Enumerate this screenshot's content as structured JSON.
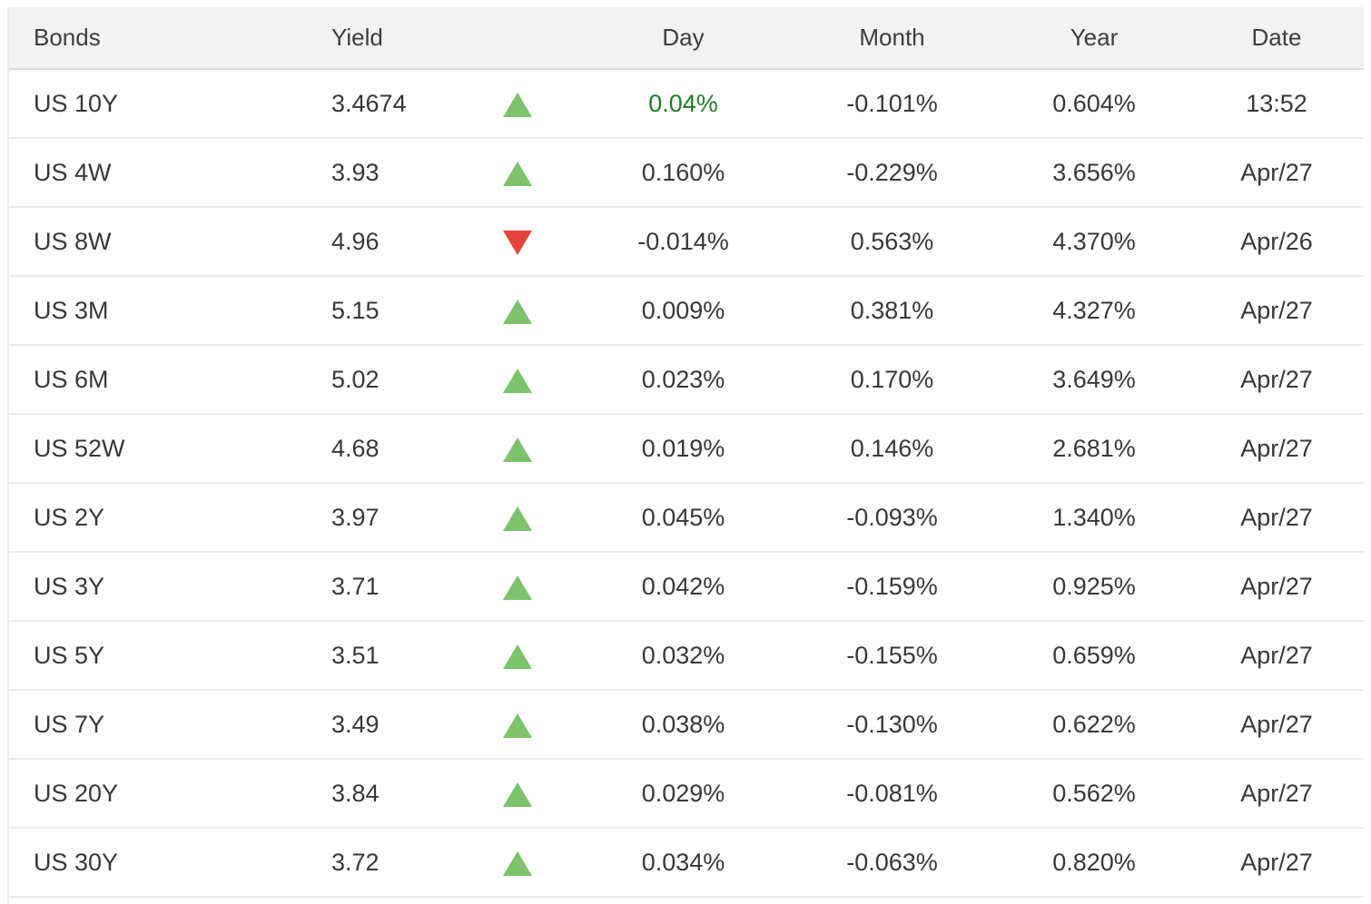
{
  "chart_data": {
    "type": "table",
    "headers": [
      "Bonds",
      "Yield",
      "",
      "Day",
      "Month",
      "Year",
      "Date"
    ],
    "rows": [
      {
        "bond": "US 10Y",
        "yield": "3.4674",
        "direction": "up",
        "day": "0.04%",
        "day_color": "green",
        "month": "-0.101%",
        "year": "0.604%",
        "date": "13:52"
      },
      {
        "bond": "US 4W",
        "yield": "3.93",
        "direction": "up",
        "day": "0.160%",
        "month": "-0.229%",
        "year": "3.656%",
        "date": "Apr/27"
      },
      {
        "bond": "US 8W",
        "yield": "4.96",
        "direction": "down",
        "day": "-0.014%",
        "month": "0.563%",
        "year": "4.370%",
        "date": "Apr/26"
      },
      {
        "bond": "US 3M",
        "yield": "5.15",
        "direction": "up",
        "day": "0.009%",
        "month": "0.381%",
        "year": "4.327%",
        "date": "Apr/27"
      },
      {
        "bond": "US 6M",
        "yield": "5.02",
        "direction": "up",
        "day": "0.023%",
        "month": "0.170%",
        "year": "3.649%",
        "date": "Apr/27"
      },
      {
        "bond": "US 52W",
        "yield": "4.68",
        "direction": "up",
        "day": "0.019%",
        "month": "0.146%",
        "year": "2.681%",
        "date": "Apr/27"
      },
      {
        "bond": "US 2Y",
        "yield": "3.97",
        "direction": "up",
        "day": "0.045%",
        "month": "-0.093%",
        "year": "1.340%",
        "date": "Apr/27"
      },
      {
        "bond": "US 3Y",
        "yield": "3.71",
        "direction": "up",
        "day": "0.042%",
        "month": "-0.159%",
        "year": "0.925%",
        "date": "Apr/27"
      },
      {
        "bond": "US 5Y",
        "yield": "3.51",
        "direction": "up",
        "day": "0.032%",
        "month": "-0.155%",
        "year": "0.659%",
        "date": "Apr/27"
      },
      {
        "bond": "US 7Y",
        "yield": "3.49",
        "direction": "up",
        "day": "0.038%",
        "month": "-0.130%",
        "year": "0.622%",
        "date": "Apr/27"
      },
      {
        "bond": "US 20Y",
        "yield": "3.84",
        "direction": "up",
        "day": "0.029%",
        "month": "-0.081%",
        "year": "0.562%",
        "date": "Apr/27"
      },
      {
        "bond": "US 30Y",
        "yield": "3.72",
        "direction": "up",
        "day": "0.034%",
        "month": "-0.063%",
        "year": "0.820%",
        "date": "Apr/27"
      }
    ]
  },
  "colors": {
    "up_arrow_green": "#7DC36B",
    "down_arrow_red": "#E7423C",
    "positive_day_text_green": "#1E7D22",
    "header_background": "#F2F2F2",
    "body_text": "#383838",
    "row_divider": "#ECECEC"
  }
}
